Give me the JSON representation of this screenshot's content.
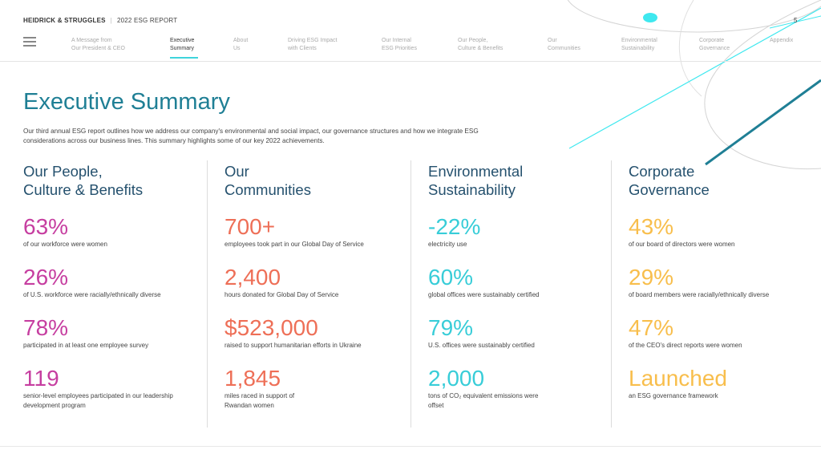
{
  "header": {
    "brand": "HEIDRICK & STRUGGLES",
    "report": "2022 ESG REPORT",
    "page_number": "5"
  },
  "nav": {
    "items": [
      {
        "line1": "A Message from",
        "line2": "Our President & CEO"
      },
      {
        "line1": "Executive",
        "line2": "Summary"
      },
      {
        "line1": "About",
        "line2": "Us"
      },
      {
        "line1": "Driving ESG Impact",
        "line2": "with Clients"
      },
      {
        "line1": "Our Internal",
        "line2": "ESG Priorities"
      },
      {
        "line1": "Our People,",
        "line2": "Culture & Benefits"
      },
      {
        "line1": "Our",
        "line2": "Communities"
      },
      {
        "line1": "Environmental",
        "line2": "Sustainability"
      },
      {
        "line1": "Corporate",
        "line2": "Governance"
      },
      {
        "line1": "Appendix",
        "line2": ""
      }
    ]
  },
  "title": "Executive Summary",
  "intro": "Our third annual ESG report outlines how we address our company's environmental and social impact, our governance structures and how we integrate ESG considerations across our business lines. This summary highlights some of our key 2022 achievements.",
  "columns": [
    {
      "heading": "Our People,\nCulture & Benefits",
      "stats": [
        {
          "value": "63%",
          "label": "of our workforce were women"
        },
        {
          "value": "26%",
          "label": "of U.S. workforce were racially/ethnically diverse"
        },
        {
          "value": "78%",
          "label": "participated in at least one employee survey"
        },
        {
          "value": "119",
          "label": "senior-level employees participated in our leadership development program"
        }
      ]
    },
    {
      "heading": "Our\nCommunities",
      "stats": [
        {
          "value": "700+",
          "label": "employees took part in our Global Day of Service"
        },
        {
          "value": "2,400",
          "label": "hours donated for Global Day of Service"
        },
        {
          "value": "$523,000",
          "label": "raised to support humanitarian efforts in Ukraine"
        },
        {
          "value": "1,845",
          "label": "miles raced in support of Rwandan women"
        }
      ]
    },
    {
      "heading": "Environmental\nSustainability",
      "stats": [
        {
          "value": "-22%",
          "label": "electricity use"
        },
        {
          "value": "60%",
          "label": "global offices were sustainably certified"
        },
        {
          "value": "79%",
          "label": "U.S. offices were sustainably certified"
        },
        {
          "value": "2,000",
          "label": "tons of CO₂ equivalent emissions were offset"
        }
      ]
    },
    {
      "heading": "Corporate\nGovernance",
      "stats": [
        {
          "value": "43%",
          "label": "of our board of directors were women"
        },
        {
          "value": "29%",
          "label": "of board members were racially/ethnically diverse"
        },
        {
          "value": "47%",
          "label": "of the CEO's direct reports were women"
        },
        {
          "value": "Launched",
          "label": "an ESG governance framework"
        }
      ]
    }
  ],
  "colors": {
    "title": "#1f7f95",
    "heading": "#25516e",
    "people": "#c63ea0",
    "communities": "#ee6f57",
    "environment": "#38cdd8",
    "governance": "#f8be4c"
  }
}
